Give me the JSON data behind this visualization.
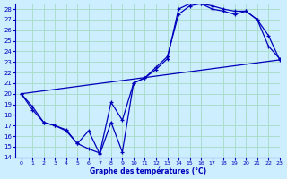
{
  "title": "Graphe des températures (°C)",
  "xlim": [
    -0.5,
    23
  ],
  "ylim": [
    14,
    28.5
  ],
  "xticks": [
    0,
    1,
    2,
    3,
    4,
    5,
    6,
    7,
    8,
    9,
    10,
    11,
    12,
    13,
    14,
    15,
    16,
    17,
    18,
    19,
    20,
    21,
    22,
    23
  ],
  "yticks": [
    14,
    15,
    16,
    17,
    18,
    19,
    20,
    21,
    22,
    23,
    24,
    25,
    26,
    27,
    28
  ],
  "bg_color": "#cceeff",
  "line_color": "#0000bb",
  "grid_color": "#aaddcc",
  "series1_x": [
    0,
    1,
    2,
    3,
    4,
    5,
    6,
    7,
    8,
    9,
    10,
    11,
    12,
    13,
    14,
    15,
    16,
    17,
    18,
    19,
    20,
    21,
    22,
    23
  ],
  "series1_y": [
    20,
    18.5,
    17.3,
    17.0,
    16.5,
    15.3,
    16.5,
    14.3,
    17.3,
    14.5,
    21.0,
    21.5,
    22.3,
    23.3,
    28.0,
    28.5,
    28.5,
    28.3,
    28.0,
    27.8,
    27.8,
    27.0,
    24.5,
    23.3
  ],
  "series2_x": [
    0,
    1,
    2,
    3,
    4,
    5,
    6,
    7,
    8,
    9,
    10,
    11,
    12,
    13,
    14,
    15,
    16,
    17,
    18,
    19,
    20,
    21,
    22,
    23
  ],
  "series2_y": [
    20,
    18.8,
    17.3,
    17.0,
    16.6,
    15.3,
    14.8,
    14.4,
    19.2,
    17.5,
    21.0,
    21.5,
    22.5,
    23.5,
    27.5,
    28.3,
    28.5,
    28.0,
    27.8,
    27.5,
    27.8,
    27.0,
    25.5,
    23.2
  ],
  "series3_x": [
    0,
    23
  ],
  "series3_y": [
    20,
    23.2
  ]
}
